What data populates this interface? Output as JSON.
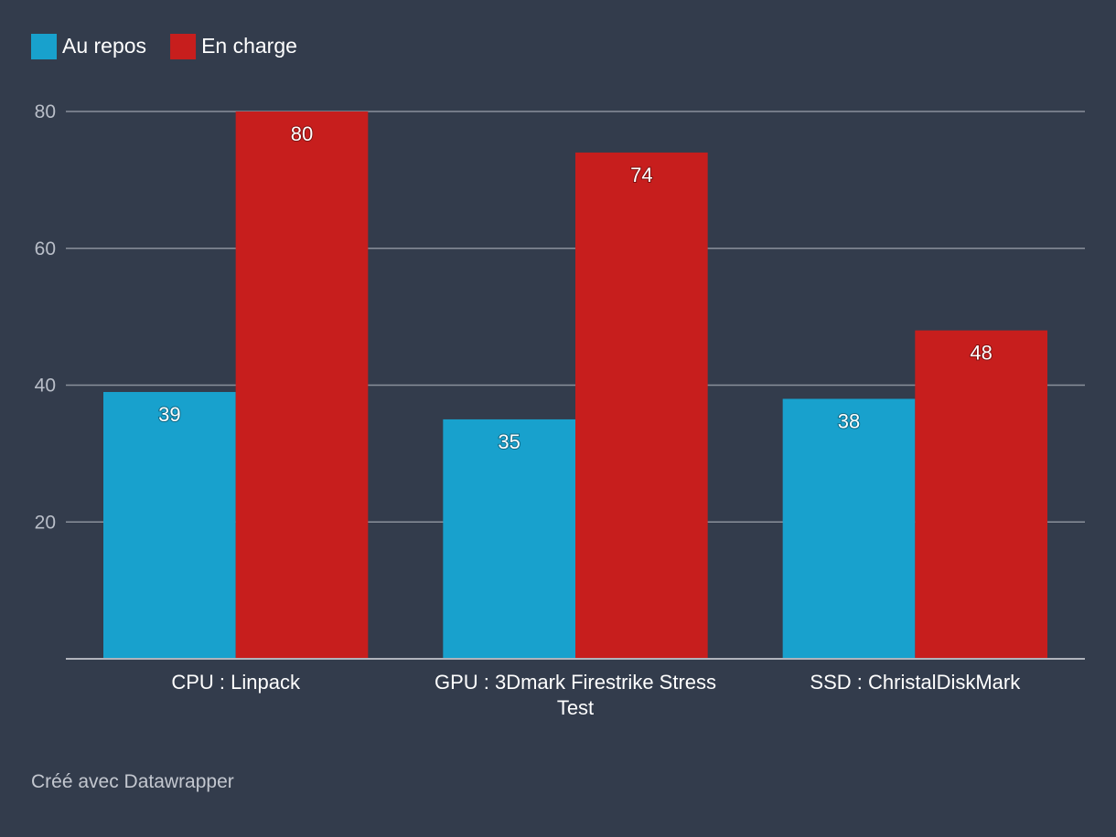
{
  "footer": {
    "credit": "Créé avec Datawrapper"
  },
  "chart_data": {
    "type": "bar",
    "categories": [
      "CPU : Linpack",
      "GPU : 3Dmark Firestrike Stress Test",
      "SSD : ChristalDiskMark"
    ],
    "category_lines": [
      [
        "CPU : Linpack"
      ],
      [
        "GPU : 3Dmark Firestrike Stress",
        "Test"
      ],
      [
        "SSD : ChristalDiskMark"
      ]
    ],
    "series": [
      {
        "name": "Au repos",
        "values": [
          39,
          35,
          38
        ],
        "color": "#18a1cd"
      },
      {
        "name": "En charge",
        "values": [
          80,
          74,
          48
        ],
        "color": "#c71e1d"
      }
    ],
    "yticks": [
      20,
      40,
      60,
      80
    ],
    "ylim": [
      0,
      80
    ],
    "grid": true,
    "legend_position": "top-left",
    "colors": {
      "background": "#333c4c",
      "gridline": "#8a909b",
      "baseline": "#b0b4bc"
    }
  }
}
